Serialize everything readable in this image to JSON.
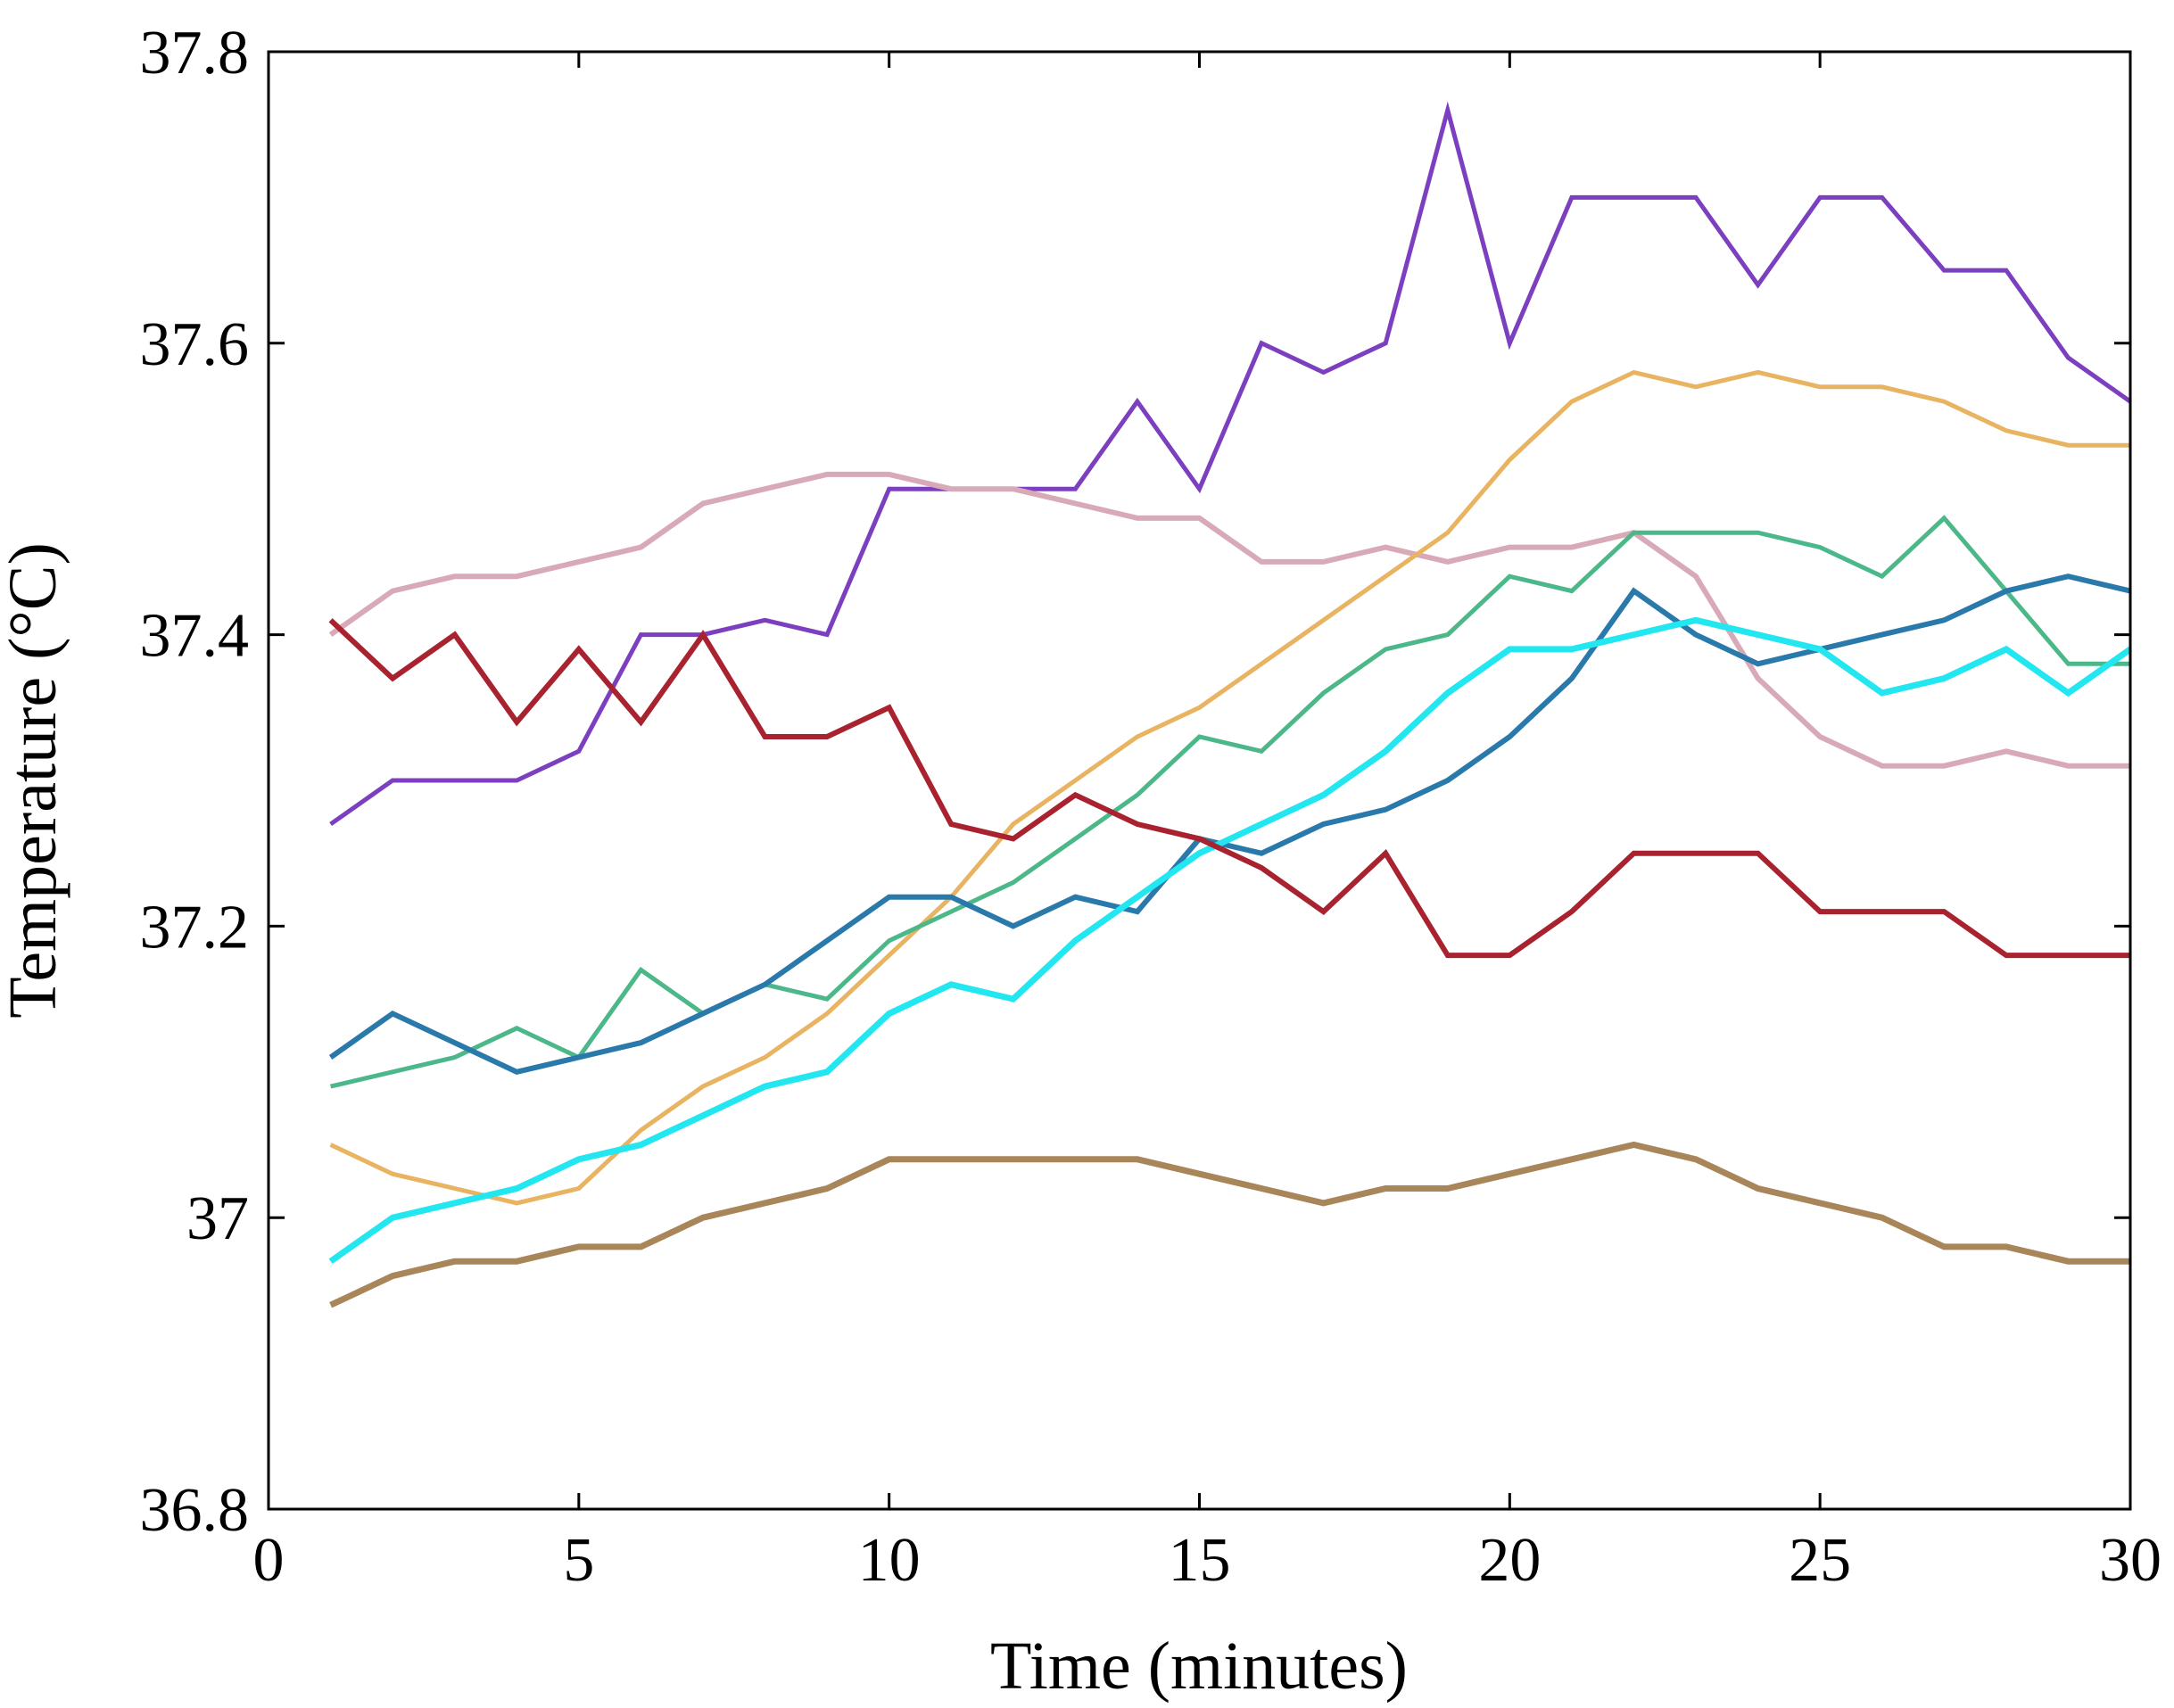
{
  "chart_data": {
    "type": "line",
    "title": "",
    "xlabel": "Time (minutes)",
    "ylabel": "Temperature (°C)",
    "xlim": [
      0,
      30
    ],
    "ylim": [
      36.8,
      37.8
    ],
    "grid": false,
    "legend": "none",
    "x_ticks": [
      {
        "value": 0,
        "label": "0"
      },
      {
        "value": 5,
        "label": "5"
      },
      {
        "value": 10,
        "label": "10"
      },
      {
        "value": 15,
        "label": "15"
      },
      {
        "value": 20,
        "label": "20"
      },
      {
        "value": 25,
        "label": "25"
      },
      {
        "value": 30,
        "label": "30"
      }
    ],
    "y_ticks": [
      {
        "value": 36.8,
        "label": "36.8"
      },
      {
        "value": 37.0,
        "label": "37"
      },
      {
        "value": 37.2,
        "label": "37.2"
      },
      {
        "value": 37.4,
        "label": "37.4"
      },
      {
        "value": 37.6,
        "label": "37.6"
      },
      {
        "value": 37.8,
        "label": "37.8"
      }
    ],
    "x": [
      1,
      2,
      3,
      4,
      5,
      6,
      7,
      8,
      9,
      10,
      11,
      12,
      13,
      14,
      15,
      16,
      17,
      18,
      19,
      20,
      21,
      22,
      23,
      24,
      25,
      26,
      27,
      28,
      29,
      30
    ],
    "series": [
      {
        "name": "purple",
        "color": "#7b3fbf",
        "values": [
          37.27,
          37.3,
          37.3,
          37.3,
          37.32,
          37.4,
          37.4,
          37.41,
          37.4,
          37.5,
          37.5,
          37.5,
          37.5,
          37.56,
          37.5,
          37.6,
          37.58,
          37.6,
          37.76,
          37.6,
          37.7,
          37.7,
          37.7,
          37.64,
          37.7,
          37.7,
          37.65,
          37.65,
          37.59,
          37.56
        ]
      },
      {
        "name": "pink",
        "color": "#d8aab8",
        "values": [
          37.4,
          37.43,
          37.44,
          37.44,
          37.45,
          37.46,
          37.49,
          37.5,
          37.51,
          37.51,
          37.5,
          37.5,
          37.49,
          37.48,
          37.48,
          37.45,
          37.45,
          37.46,
          37.45,
          37.46,
          37.46,
          37.47,
          37.44,
          37.37,
          37.33,
          37.31,
          37.31,
          37.32,
          37.31,
          37.31
        ]
      },
      {
        "name": "orange",
        "color": "#e8b462",
        "values": [
          37.05,
          37.03,
          37.02,
          37.01,
          37.02,
          37.06,
          37.09,
          37.11,
          37.14,
          37.18,
          37.22,
          37.27,
          37.3,
          37.33,
          37.35,
          37.38,
          37.41,
          37.44,
          37.47,
          37.52,
          37.56,
          37.58,
          37.57,
          37.58,
          37.57,
          37.57,
          37.56,
          37.54,
          37.53,
          37.53
        ]
      },
      {
        "name": "green",
        "color": "#4cb88a",
        "values": [
          37.09,
          37.1,
          37.11,
          37.13,
          37.11,
          37.17,
          37.14,
          37.16,
          37.15,
          37.19,
          37.21,
          37.23,
          37.26,
          37.29,
          37.33,
          37.32,
          37.36,
          37.39,
          37.4,
          37.44,
          37.43,
          37.47,
          37.47,
          37.47,
          37.46,
          37.44,
          37.48,
          37.43,
          37.38,
          37.38
        ]
      },
      {
        "name": "blue",
        "color": "#2a79ab",
        "values": [
          37.11,
          37.14,
          37.12,
          37.1,
          37.11,
          37.12,
          37.14,
          37.16,
          37.19,
          37.22,
          37.22,
          37.2,
          37.22,
          37.21,
          37.26,
          37.25,
          37.27,
          37.28,
          37.3,
          37.33,
          37.37,
          37.43,
          37.4,
          37.38,
          37.39,
          37.4,
          37.41,
          37.43,
          37.44,
          37.43
        ]
      },
      {
        "name": "cyan",
        "color": "#22e6f0",
        "values": [
          36.97,
          37.0,
          37.01,
          37.02,
          37.04,
          37.05,
          37.07,
          37.09,
          37.1,
          37.14,
          37.16,
          37.15,
          37.19,
          37.22,
          37.25,
          37.27,
          37.29,
          37.32,
          37.36,
          37.39,
          37.39,
          37.4,
          37.41,
          37.4,
          37.39,
          37.36,
          37.37,
          37.39,
          37.36,
          37.39
        ]
      },
      {
        "name": "red",
        "color": "#a8232f",
        "values": [
          37.41,
          37.37,
          37.4,
          37.34,
          37.39,
          37.34,
          37.4,
          37.33,
          37.33,
          37.35,
          37.27,
          37.26,
          37.29,
          37.27,
          37.26,
          37.24,
          37.21,
          37.25,
          37.18,
          37.18,
          37.21,
          37.25,
          37.25,
          37.25,
          37.21,
          37.21,
          37.21,
          37.18,
          37.18,
          37.18
        ]
      },
      {
        "name": "brown",
        "color": "#a8865a",
        "values": [
          36.94,
          36.96,
          36.97,
          36.97,
          36.98,
          36.98,
          37.0,
          37.01,
          37.02,
          37.04,
          37.04,
          37.04,
          37.04,
          37.04,
          37.03,
          37.02,
          37.01,
          37.02,
          37.02,
          37.03,
          37.04,
          37.05,
          37.04,
          37.02,
          37.01,
          37.0,
          36.98,
          36.98,
          36.97,
          36.97
        ]
      }
    ]
  }
}
